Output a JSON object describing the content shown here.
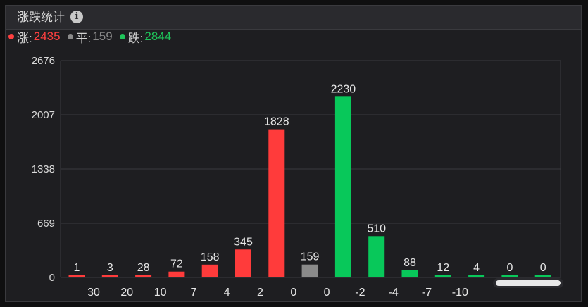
{
  "header": {
    "title": "涨跌统计",
    "info_icon": "info-icon"
  },
  "legend": [
    {
      "label": "涨:",
      "value": "2435",
      "color": "#ff4040"
    },
    {
      "label": "平:",
      "value": "159",
      "color": "#8a8a8a"
    },
    {
      "label": "跌:",
      "value": "2844",
      "color": "#1fc45a"
    }
  ],
  "chart_data": {
    "type": "bar",
    "categories": [
      "30",
      "20",
      "10",
      "7",
      "4",
      "2",
      "0",
      "0",
      "-2",
      "-4",
      "-7",
      "-10",
      "",
      "",
      ""
    ],
    "x_tick_labels": [
      "30",
      "20",
      "10",
      "7",
      "4",
      "2",
      "0",
      "0",
      "-2",
      "-4",
      "-7",
      "-10"
    ],
    "values": [
      1,
      3,
      28,
      72,
      158,
      345,
      1828,
      159,
      2230,
      510,
      88,
      12,
      4,
      0,
      0
    ],
    "colors": [
      "#ff3b3b",
      "#ff3b3b",
      "#ff3b3b",
      "#ff3b3b",
      "#ff3b3b",
      "#ff3b3b",
      "#ff3b3b",
      "#8a8a8a",
      "#08c85a",
      "#08c85a",
      "#08c85a",
      "#08c85a",
      "#08c85a",
      "#08c85a",
      "#08c85a"
    ],
    "y_ticks": [
      0,
      669,
      1338,
      2007,
      2676
    ],
    "ylim": [
      0,
      2676
    ],
    "grid": true
  }
}
